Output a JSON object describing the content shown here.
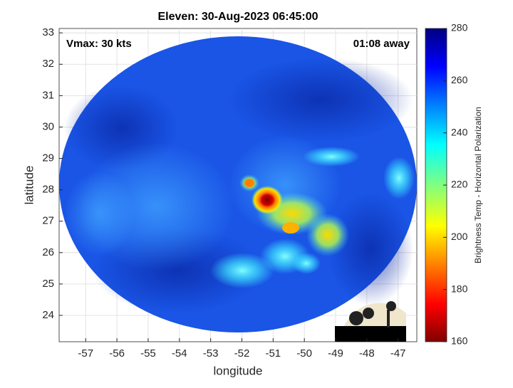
{
  "chart_data": {
    "type": "image",
    "title": "Eleven: 30-Aug-2023 06:45:00",
    "annotations": [
      "Vmax: 30 kts",
      "01:08 away"
    ],
    "xlabel": "longitude",
    "ylabel": "latitude",
    "xlim": [
      -57.85,
      -46.4
    ],
    "xticks": [
      -57,
      -56,
      -55,
      -54,
      -53,
      -52,
      -51,
      -50,
      -49,
      -48,
      -47
    ],
    "ylim": [
      23.16,
      33.14
    ],
    "yticks": [
      24,
      25,
      26,
      27,
      28,
      29,
      30,
      31,
      32,
      33
    ],
    "grid": true,
    "colorbar": {
      "label": "Brightness Temp - Horizontal Polarization",
      "lim": [
        160,
        280
      ],
      "ticks": [
        160,
        180,
        200,
        220,
        240,
        260,
        280
      ]
    },
    "logo": "CIMSS"
  }
}
